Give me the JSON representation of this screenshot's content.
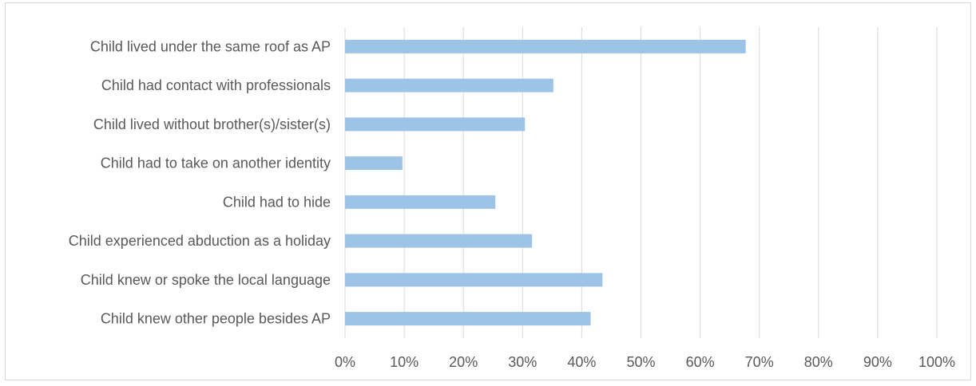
{
  "chart_data": {
    "type": "bar",
    "orientation": "horizontal",
    "categories": [
      "Child lived under the same roof as AP",
      "Child had contact with professionals",
      "Child lived without brother(s)/sister(s)",
      "Child had to take on another identity",
      "Child had to hide",
      "Child experienced abduction as a holiday",
      "Child knew or spoke the local language",
      "Child knew other people besides AP"
    ],
    "values": [
      67.7,
      35.2,
      30.4,
      9.7,
      25.4,
      31.6,
      43.5,
      41.5
    ],
    "xlim": [
      0,
      100
    ],
    "x_ticks": [
      "0%",
      "10%",
      "20%",
      "30%",
      "40%",
      "50%",
      "60%",
      "70%",
      "80%",
      "90%",
      "100%"
    ],
    "grid": "vertical",
    "bar_color": "#9dc3e6",
    "gridline_color": "#d9d9d9",
    "text_color": "#595959"
  }
}
